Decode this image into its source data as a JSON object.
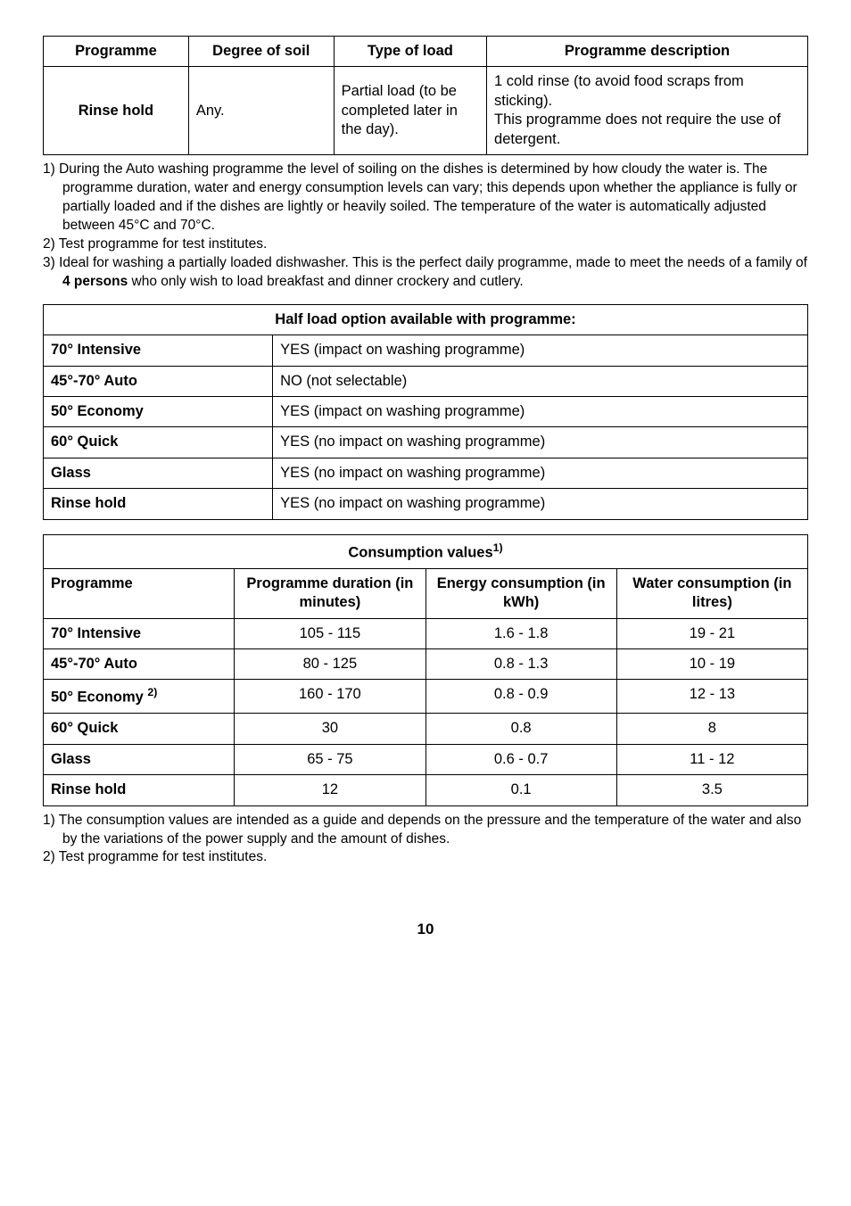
{
  "table1": {
    "headers": [
      "Programme",
      "Degree of soil",
      "Type of load",
      "Programme description"
    ],
    "row": {
      "programme": "Rinse hold",
      "soil": "Any.",
      "load": "Partial load (to be completed later in the day).",
      "desc": "1 cold rinse (to avoid food scraps from sticking).\nThis programme does not require the use of detergent."
    },
    "col_widths": [
      "19%",
      "19%",
      "20%",
      "42%"
    ]
  },
  "notes1": [
    "1) During the Auto washing programme the level of soiling on the dishes is determined by how cloudy the water is. The programme duration, water and energy consumption levels can vary; this depends upon whether the appliance is fully or partially loaded and if the dishes are lightly or heavily soiled. The temperature of the water is automatically adjusted between 45°C and 70°C.",
    "2) Test programme for test institutes.",
    "3) Ideal for washing a partially loaded dishwasher. This is the perfect daily programme, made to meet the needs of a family of 4 persons who only wish to load breakfast and dinner crockery and cutlery."
  ],
  "notes1_bold_phrase": "4 persons",
  "table2": {
    "title": "Half load option available with programme:",
    "rows": [
      [
        "70° Intensive",
        "YES (impact on washing programme)"
      ],
      [
        "45°-70° Auto",
        "NO (not selectable)"
      ],
      [
        "50° Economy",
        "YES (impact on washing programme)"
      ],
      [
        "60° Quick",
        "YES (no impact on washing programme)"
      ],
      [
        "Glass",
        "YES (no impact on washing programme)"
      ],
      [
        "Rinse hold",
        "YES (no impact on washing programme)"
      ]
    ],
    "col_widths": [
      "30%",
      "70%"
    ]
  },
  "table3": {
    "title": "Consumption values",
    "title_sup": "1)",
    "headers": [
      "Programme",
      "Programme duration (in minutes)",
      "Energy consumption (in kWh)",
      "Water consumption (in litres)"
    ],
    "rows": [
      {
        "label": "70° Intensive",
        "sup": "",
        "dur": "105 - 115",
        "en": "1.6 - 1.8",
        "wat": "19 - 21"
      },
      {
        "label": "45°-70° Auto",
        "sup": "",
        "dur": "80 - 125",
        "en": "0.8 - 1.3",
        "wat": "10 - 19"
      },
      {
        "label": "50° Economy ",
        "sup": "2)",
        "dur": "160 - 170",
        "en": "0.8 - 0.9",
        "wat": "12 - 13"
      },
      {
        "label": "60° Quick",
        "sup": "",
        "dur": "30",
        "en": "0.8",
        "wat": "8"
      },
      {
        "label": "Glass",
        "sup": "",
        "dur": "65 - 75",
        "en": "0.6 - 0.7",
        "wat": "11 - 12"
      },
      {
        "label": "Rinse hold",
        "sup": "",
        "dur": "12",
        "en": "0.1",
        "wat": "3.5"
      }
    ],
    "col_widths": [
      "25%",
      "25%",
      "25%",
      "25%"
    ]
  },
  "notes2": [
    "1) The consumption values are intended as a guide and depends on the pressure and the temperature of the water and also by the variations of the power supply and the amount of dishes.",
    "2) Test programme for test institutes."
  ],
  "page_number": "10",
  "colors": {
    "text": "#000000",
    "bg": "#ffffff",
    "border": "#000000"
  },
  "fontsizes": {
    "cell": 16.5,
    "notes": 15.5,
    "pagenum": 17
  }
}
